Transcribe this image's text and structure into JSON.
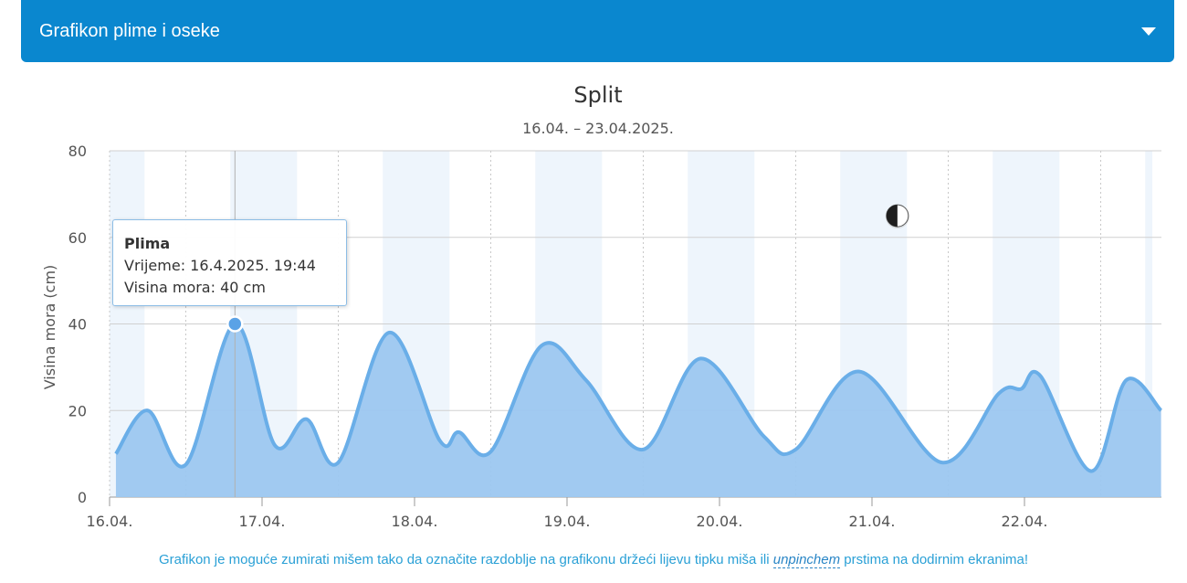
{
  "panel": {
    "title": "Grafikon plime i oseke"
  },
  "tooltip": {
    "title": "Plima",
    "time_line": "Vrijeme: 16.4.2025. 19:44",
    "height_line": "Visina mora: 40 cm"
  },
  "note": {
    "before": "Grafikon je moguće zumirati mišem tako da označite razdoblje na grafikonu držeći lijevu tipku miša ili ",
    "emphasis": "unpinchem",
    "after": " prstima na dodirnim ekranima!"
  },
  "colors": {
    "header": "#0a87cf",
    "line": "#6aaee8",
    "area": "#9cc7f0",
    "night_band": "#eef5fc"
  },
  "chart_data": {
    "type": "area",
    "title": "Split",
    "subtitle": "16.04. – 23.04.2025.",
    "xlabel": "",
    "ylabel": "Visina mora (cm)",
    "ylim": [
      0,
      80
    ],
    "yticks": [
      0,
      20,
      40,
      60,
      80
    ],
    "x_start": "2025-04-16 00:00",
    "x_end": "2025-04-22 23:59",
    "xticks": [
      "16.04.",
      "17.04.",
      "18.04.",
      "19.04.",
      "20.04.",
      "21.04.",
      "22.04."
    ],
    "grid": true,
    "night_bands": true,
    "moon_icon": "first-quarter-moon",
    "moon_time": "2025-04-21 04:00",
    "moon_y": 65,
    "highlight": {
      "time": "2025-04-16 19:44",
      "value": 40
    },
    "series": [
      {
        "points": [
          [
            "2025-04-16 01:00",
            10
          ],
          [
            "2025-04-16 06:00",
            20
          ],
          [
            "2025-04-16 12:00",
            7.5
          ],
          [
            "2025-04-16 19:44",
            40
          ],
          [
            "2025-04-17 02:00",
            12
          ],
          [
            "2025-04-17 07:00",
            18
          ],
          [
            "2025-04-17 12:00",
            8
          ],
          [
            "2025-04-17 20:00",
            38
          ],
          [
            "2025-04-18 04:00",
            13
          ],
          [
            "2025-04-18 07:00",
            15
          ],
          [
            "2025-04-18 12:00",
            10.5
          ],
          [
            "2025-04-18 20:00",
            35
          ],
          [
            "2025-04-19 03:00",
            27
          ],
          [
            "2025-04-19 12:00",
            11
          ],
          [
            "2025-04-19 21:00",
            32
          ],
          [
            "2025-04-20 07:00",
            14
          ],
          [
            "2025-04-20 12:00",
            11
          ],
          [
            "2025-04-20 22:00",
            29
          ],
          [
            "2025-04-21 11:00",
            8
          ],
          [
            "2025-04-21 20:00",
            24
          ],
          [
            "2025-04-21 23:30",
            25
          ],
          [
            "2025-04-22 02:30",
            28
          ],
          [
            "2025-04-22 10:30",
            6
          ],
          [
            "2025-04-22 16:00",
            27
          ],
          [
            "2025-04-22 21:30",
            20
          ]
        ]
      }
    ]
  }
}
